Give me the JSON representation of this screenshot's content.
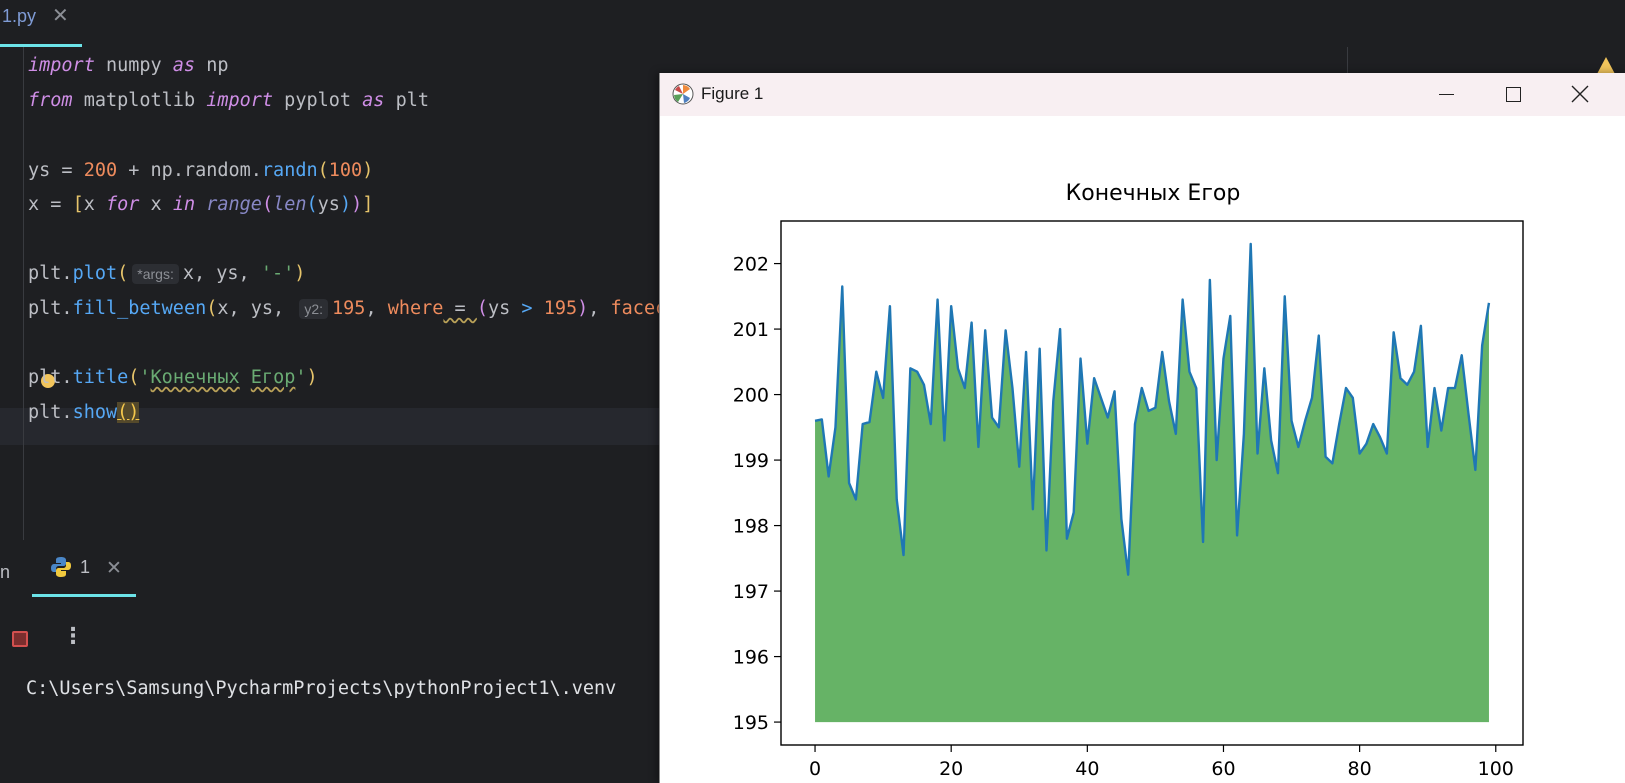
{
  "editor": {
    "tab": {
      "label": "1.py"
    },
    "code_lines": [
      "import numpy as np",
      "from matplotlib import pyplot as plt",
      "",
      "ys = 200 + np.random.randn(100)",
      "x = [x for x in range(len(ys))]",
      "",
      "plt.plot(x, ys, '-')",
      "plt.fill_between(x, ys, 195, where=(ys > 195), facec",
      "",
      "plt.title('Конечных Егор')",
      "plt.show()"
    ],
    "inlay_hints": {
      "plot_args": "*args:",
      "fill_y2": "y2:"
    }
  },
  "run_panel": {
    "partial_tab": "n",
    "run_tab_label": "1",
    "console_text": "C:\\Users\\Samsung\\PycharmProjects\\pythonProject1\\.venv"
  },
  "figure_window": {
    "title": "Figure 1",
    "controls": [
      "minimize",
      "maximize",
      "close"
    ]
  },
  "colors": {
    "editor_bg": "#1e1f22",
    "accent_underline": "#6ce3e8",
    "line_color": "#1f77b4",
    "fill_color": "#66b366"
  },
  "chart_data": {
    "type": "area",
    "title": "Конечных Егор",
    "xlabel": "",
    "ylabel": "",
    "xlim": [
      -5,
      104
    ],
    "ylim": [
      194.65,
      202.65
    ],
    "xticks": [
      0,
      20,
      40,
      60,
      80,
      100
    ],
    "yticks": [
      195,
      196,
      197,
      198,
      199,
      200,
      201,
      202
    ],
    "fill_baseline": 195,
    "grid": false,
    "legend": "none",
    "x": [
      0,
      1,
      2,
      3,
      4,
      5,
      6,
      7,
      8,
      9,
      10,
      11,
      12,
      13,
      14,
      15,
      16,
      17,
      18,
      19,
      20,
      21,
      22,
      23,
      24,
      25,
      26,
      27,
      28,
      29,
      30,
      31,
      32,
      33,
      34,
      35,
      36,
      37,
      38,
      39,
      40,
      41,
      42,
      43,
      44,
      45,
      46,
      47,
      48,
      49,
      50,
      51,
      52,
      53,
      54,
      55,
      56,
      57,
      58,
      59,
      60,
      61,
      62,
      63,
      64,
      65,
      66,
      67,
      68,
      69,
      70,
      71,
      72,
      73,
      74,
      75,
      76,
      77,
      78,
      79,
      80,
      81,
      82,
      83,
      84,
      85,
      86,
      87,
      88,
      89,
      90,
      91,
      92,
      93,
      94,
      95,
      96,
      97,
      98,
      99
    ],
    "values": [
      199.6,
      199.62,
      198.75,
      199.5,
      201.65,
      198.65,
      198.4,
      199.55,
      199.58,
      200.35,
      199.95,
      201.35,
      198.4,
      197.55,
      200.4,
      200.35,
      200.15,
      199.55,
      201.45,
      199.3,
      201.35,
      200.4,
      200.1,
      201.1,
      199.2,
      200.98,
      199.65,
      199.5,
      200.98,
      200.1,
      198.9,
      200.65,
      198.25,
      200.7,
      197.62,
      199.9,
      201.0,
      197.8,
      198.2,
      200.55,
      199.25,
      200.25,
      199.95,
      199.65,
      200.05,
      198.1,
      197.25,
      199.55,
      200.1,
      199.75,
      199.8,
      200.65,
      199.9,
      199.4,
      201.45,
      200.35,
      200.1,
      197.75,
      201.75,
      199.0,
      200.55,
      201.2,
      197.85,
      199.4,
      202.3,
      199.1,
      200.4,
      199.3,
      198.8,
      201.5,
      199.6,
      199.2,
      199.6,
      199.95,
      200.9,
      199.05,
      198.95,
      199.55,
      200.1,
      199.95,
      199.1,
      199.25,
      199.55,
      199.35,
      199.1,
      200.95,
      200.25,
      200.15,
      200.35,
      201.05,
      199.2,
      200.1,
      199.45,
      200.1,
      200.1,
      200.6,
      199.7,
      198.85,
      200.75,
      201.4
    ]
  }
}
